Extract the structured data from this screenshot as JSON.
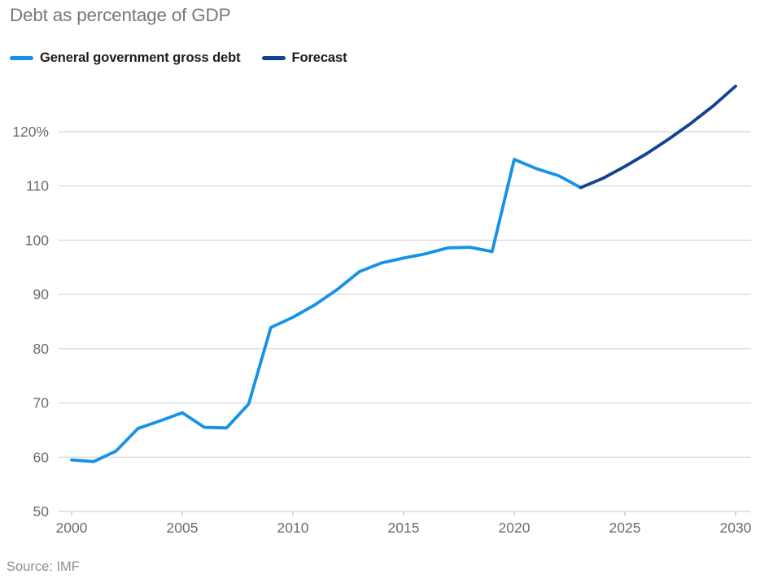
{
  "header": {
    "title": "Debt as percentage of GDP"
  },
  "source": {
    "label": "Source: IMF"
  },
  "chart_data": {
    "type": "line",
    "title": "Debt as percentage of GDP",
    "xlabel": "",
    "ylabel": "",
    "xlim": [
      2000,
      2030
    ],
    "ylim": [
      50,
      130
    ],
    "grid": "horizontal",
    "legend_position": "top-left",
    "grid_color": "#dcdcdc",
    "tick_color": "#c9c9c9",
    "axis_label_color": "#6b6c70",
    "x_ticks": [
      {
        "value": 2000,
        "label": "2000"
      },
      {
        "value": 2005,
        "label": "2005"
      },
      {
        "value": 2010,
        "label": "2010"
      },
      {
        "value": 2015,
        "label": "2015"
      },
      {
        "value": 2020,
        "label": "2020"
      },
      {
        "value": 2025,
        "label": "2025"
      },
      {
        "value": 2030,
        "label": "2030"
      }
    ],
    "y_ticks": [
      {
        "value": 50,
        "label": "50"
      },
      {
        "value": 60,
        "label": "60"
      },
      {
        "value": 70,
        "label": "70"
      },
      {
        "value": 80,
        "label": "80"
      },
      {
        "value": 90,
        "label": "90"
      },
      {
        "value": 100,
        "label": "100"
      },
      {
        "value": 110,
        "label": "110"
      },
      {
        "value": 120,
        "label": "120%"
      }
    ],
    "series": [
      {
        "name": "General government gross debt",
        "color": "#1592e6",
        "x": [
          2000,
          2001,
          2002,
          2003,
          2004,
          2005,
          2006,
          2007,
          2008,
          2009,
          2010,
          2011,
          2012,
          2013,
          2014,
          2015,
          2016,
          2017,
          2018,
          2019,
          2020,
          2021,
          2022,
          2023
        ],
        "values": [
          59.5,
          59.2,
          61.1,
          65.3,
          66.7,
          68.2,
          65.5,
          65.4,
          69.8,
          83.9,
          85.8,
          88.1,
          90.9,
          94.2,
          95.8,
          96.7,
          97.5,
          98.6,
          98.7,
          97.9,
          114.9,
          113.2,
          111.9,
          109.7
        ]
      },
      {
        "name": "Forecast",
        "color": "#11438f",
        "x": [
          2023,
          2024,
          2025,
          2026,
          2027,
          2028,
          2029,
          2030
        ],
        "values": [
          109.7,
          111.4,
          113.6,
          116.0,
          118.7,
          121.6,
          124.8,
          128.4
        ]
      }
    ]
  }
}
